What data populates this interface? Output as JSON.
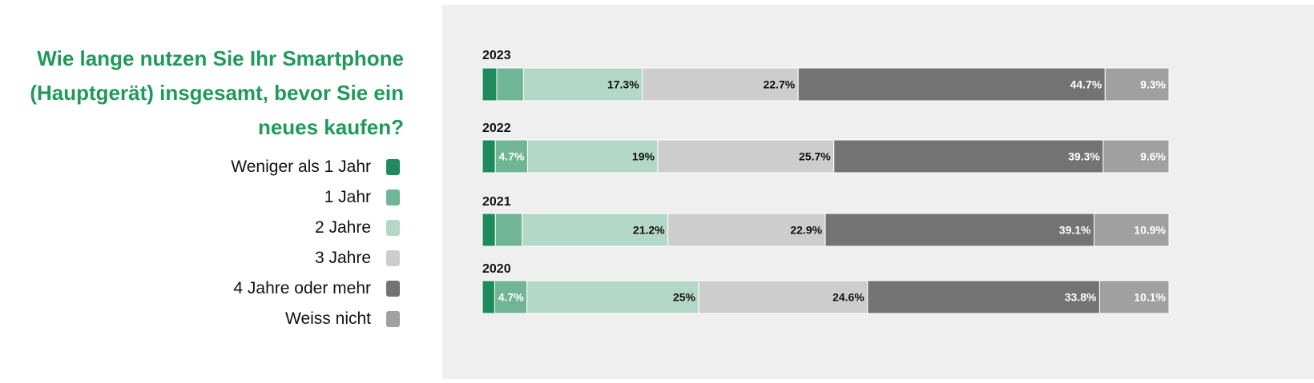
{
  "chart_data": {
    "type": "bar",
    "orientation": "horizontal",
    "stacked": true,
    "normalized_percent": true,
    "title": "Wie lange nutzen Sie Ihr Smartphone (Hauptgerät) insgesamt, bevor Sie ein neues kaufen?",
    "categories": [
      "2023",
      "2022",
      "2021",
      "2020"
    ],
    "series": [
      {
        "name": "Weniger als 1 Jahr",
        "color": "#1f8a5e",
        "values": [
          2.1,
          1.9,
          1.9,
          1.8
        ],
        "labels": [
          "",
          "",
          "",
          ""
        ],
        "label_color": "#ffffff"
      },
      {
        "name": "1 Jahr",
        "color": "#6fb596",
        "values": [
          3.9,
          4.7,
          3.9,
          4.7
        ],
        "labels": [
          "",
          "4.7%",
          "",
          "4.7%"
        ],
        "label_color": "#ffffff"
      },
      {
        "name": "2 Jahre",
        "color": "#b4d8c8",
        "values": [
          17.3,
          19,
          21.2,
          25
        ],
        "labels": [
          "17.3%",
          "19%",
          "21.2%",
          "25%"
        ],
        "label_color": "#111111"
      },
      {
        "name": "3 Jahre",
        "color": "#cdcdcd",
        "values": [
          22.7,
          25.7,
          22.9,
          24.6
        ],
        "labels": [
          "22.7%",
          "25.7%",
          "22.9%",
          "24.6%"
        ],
        "label_color": "#111111"
      },
      {
        "name": "4 Jahre oder mehr",
        "color": "#737373",
        "values": [
          44.7,
          39.3,
          39.1,
          33.8
        ],
        "labels": [
          "44.7%",
          "39.3%",
          "39.1%",
          "33.8%"
        ],
        "label_color": "#ffffff"
      },
      {
        "name": "Weiss nicht",
        "color": "#a0a0a0",
        "values": [
          9.3,
          9.6,
          10.9,
          10.1
        ],
        "labels": [
          "9.3%",
          "9.6%",
          "10.9%",
          "10.1%"
        ],
        "label_color": "#ffffff"
      }
    ],
    "legend_position": "left",
    "grid": false
  }
}
